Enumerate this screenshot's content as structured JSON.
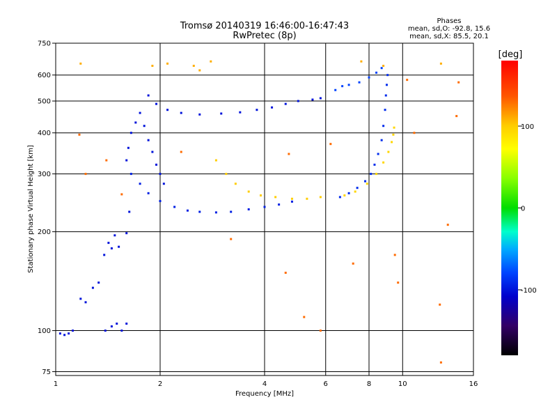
{
  "chart_data": {
    "type": "scatter",
    "title": "Tromsø 20140319 16:46:00-16:47:43",
    "subtitle": "RwPretec (8p)",
    "xlabel": "Frequency [MHz]",
    "ylabel": "Stationary phase Virtual Height [km]",
    "xscale": "log",
    "yscale": "log",
    "xlim": [
      1,
      16
    ],
    "ylim": [
      73,
      750
    ],
    "x_ticks": [
      1,
      2,
      4,
      6,
      8,
      10,
      16
    ],
    "y_ticks": [
      75,
      100,
      200,
      300,
      400,
      500,
      600,
      750
    ],
    "grid": true,
    "info": {
      "heading": "Phases",
      "line1": "mean, sd,O: -92.8, 15.6",
      "line2": "mean, sd,X:  85.5, 20.1"
    },
    "colorbar": {
      "label": "[deg]",
      "min": -180,
      "max": 180,
      "ticks": [
        100,
        0,
        -100
      ],
      "tick_labels": [
        "100",
        "0",
        "-100"
      ],
      "colormap": "rainbow"
    },
    "series": [
      {
        "trace": "low-frequency-blue-cluster",
        "color_value": -100,
        "points": [
          [
            1.03,
            98
          ],
          [
            1.06,
            97
          ],
          [
            1.09,
            98
          ],
          [
            1.12,
            100
          ],
          [
            1.18,
            125
          ],
          [
            1.22,
            122
          ],
          [
            1.28,
            135
          ],
          [
            1.33,
            140
          ],
          [
            1.38,
            170
          ],
          [
            1.42,
            185
          ],
          [
            1.45,
            178
          ],
          [
            1.48,
            195
          ],
          [
            1.52,
            180
          ],
          [
            1.5,
            105
          ],
          [
            1.45,
            103
          ],
          [
            1.55,
            100
          ],
          [
            1.6,
            105
          ],
          [
            1.39,
            100
          ],
          [
            1.6,
            198
          ],
          [
            1.63,
            230
          ]
        ]
      },
      {
        "trace": "F1-lower-trace",
        "color_value": -95,
        "points": [
          [
            1.65,
            300
          ],
          [
            1.75,
            280
          ],
          [
            1.85,
            262
          ],
          [
            2.0,
            248
          ],
          [
            2.2,
            238
          ],
          [
            2.4,
            232
          ],
          [
            2.6,
            230
          ],
          [
            2.9,
            229
          ],
          [
            3.2,
            230
          ],
          [
            3.6,
            234
          ],
          [
            4.0,
            238
          ],
          [
            4.4,
            242
          ],
          [
            4.8,
            247
          ]
        ]
      },
      {
        "trace": "F1-rising-cusp",
        "color_value": -100,
        "points": [
          [
            1.6,
            330
          ],
          [
            1.62,
            360
          ],
          [
            1.65,
            400
          ],
          [
            1.7,
            430
          ],
          [
            1.75,
            460
          ],
          [
            1.8,
            420
          ],
          [
            1.85,
            380
          ],
          [
            1.9,
            350
          ],
          [
            1.95,
            320
          ],
          [
            2.0,
            300
          ],
          [
            2.05,
            280
          ]
        ]
      },
      {
        "trace": "O-mode-upper-band",
        "color_value": -100,
        "points": [
          [
            1.85,
            520
          ],
          [
            1.95,
            490
          ],
          [
            2.1,
            470
          ],
          [
            2.3,
            460
          ],
          [
            2.6,
            455
          ],
          [
            3.0,
            458
          ],
          [
            3.4,
            462
          ],
          [
            3.8,
            470
          ],
          [
            4.2,
            478
          ],
          [
            4.6,
            490
          ],
          [
            5.0,
            500
          ],
          [
            5.5,
            505
          ],
          [
            5.8,
            510
          ]
        ]
      },
      {
        "trace": "F2-O-mode",
        "color_value": -90,
        "points": [
          [
            6.6,
            255
          ],
          [
            7.0,
            262
          ],
          [
            7.4,
            272
          ],
          [
            7.8,
            285
          ],
          [
            8.1,
            300
          ],
          [
            8.3,
            320
          ],
          [
            8.5,
            345
          ],
          [
            8.7,
            380
          ],
          [
            8.8,
            420
          ],
          [
            8.9,
            470
          ],
          [
            8.95,
            520
          ],
          [
            9.0,
            560
          ],
          [
            9.05,
            600
          ]
        ]
      },
      {
        "trace": "F2-X-mode",
        "color_value": 95,
        "points": [
          [
            6.8,
            258
          ],
          [
            7.3,
            265
          ],
          [
            7.9,
            280
          ],
          [
            8.4,
            300
          ],
          [
            8.8,
            325
          ],
          [
            9.1,
            350
          ],
          [
            9.3,
            375
          ],
          [
            9.4,
            395
          ],
          [
            9.45,
            415
          ]
        ]
      },
      {
        "trace": "yellow-X-mode-lower",
        "color_value": 100,
        "points": [
          [
            2.9,
            330
          ],
          [
            3.1,
            300
          ],
          [
            3.3,
            280
          ],
          [
            3.6,
            265
          ],
          [
            3.9,
            258
          ],
          [
            4.3,
            255
          ],
          [
            4.8,
            252
          ],
          [
            5.3,
            252
          ],
          [
            5.8,
            255
          ]
        ]
      },
      {
        "trace": "upper-right-O-segment",
        "color_value": -80,
        "points": [
          [
            6.4,
            540
          ],
          [
            6.7,
            555
          ],
          [
            7.0,
            560
          ],
          [
            7.5,
            570
          ],
          [
            8.0,
            590
          ],
          [
            8.4,
            610
          ],
          [
            8.7,
            630
          ]
        ]
      },
      {
        "trace": "high-scatter-top",
        "color_value": 110,
        "points": [
          [
            1.18,
            650
          ],
          [
            1.9,
            640
          ],
          [
            2.1,
            650
          ],
          [
            2.5,
            640
          ],
          [
            2.8,
            660
          ],
          [
            2.6,
            620
          ],
          [
            7.6,
            660
          ],
          [
            8.8,
            640
          ],
          [
            12.9,
            650
          ]
        ]
      },
      {
        "trace": "sparse-noise",
        "color_value": 130,
        "points": [
          [
            1.17,
            395
          ],
          [
            1.22,
            300
          ],
          [
            1.4,
            330
          ],
          [
            1.55,
            260
          ],
          [
            2.3,
            350
          ],
          [
            3.2,
            190
          ],
          [
            4.6,
            150
          ],
          [
            4.7,
            345
          ],
          [
            5.2,
            110
          ],
          [
            5.8,
            100
          ],
          [
            6.2,
            370
          ],
          [
            7.2,
            160
          ],
          [
            9.5,
            170
          ],
          [
            9.7,
            140
          ],
          [
            10.3,
            580
          ],
          [
            10.8,
            400
          ],
          [
            12.8,
            120
          ],
          [
            12.9,
            80
          ],
          [
            13.5,
            210
          ],
          [
            14.5,
            570
          ],
          [
            14.3,
            450
          ]
        ]
      }
    ]
  }
}
